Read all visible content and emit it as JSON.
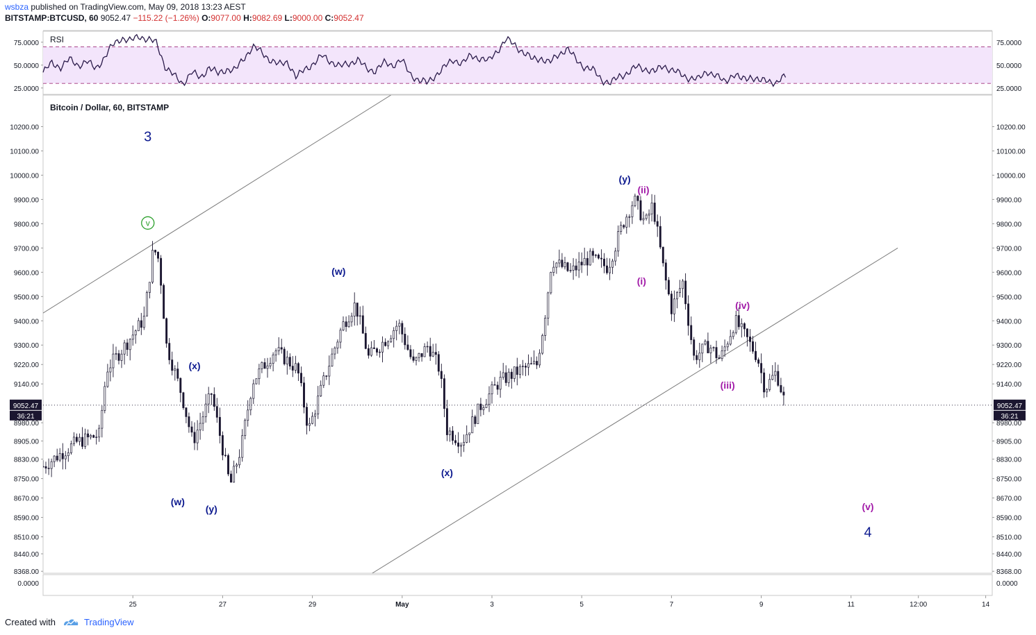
{
  "header": {
    "author": "wsbza",
    "published_text": "published on TradingView.com, May 09, 2018 13:23 AEST",
    "symbol": "BITSTAMP:BTCUSD, 60",
    "last_price": "9052.47",
    "change": "−115.22 (−1.26%)",
    "open_label": "O:",
    "open": "9077.00",
    "high_label": "H:",
    "high": "9082.69",
    "low_label": "L:",
    "low": "9000.00",
    "close_label": "C:",
    "close": "9052.47"
  },
  "footer": {
    "created_with": "Created with",
    "brand": "TradingView"
  },
  "colors": {
    "candle": "#1b1630",
    "rsi_line": "#2a1a4a",
    "rsi_band": "#f3e5fb",
    "blue_label": "#0d1a8f",
    "purple_label": "#a21ba8",
    "green_marker": "#2ca02c",
    "trendline": "#7a7a7a",
    "price_tag_bg": "#1b1630"
  },
  "chart_data": [
    {
      "type": "line",
      "name_label": "RSI",
      "ylim": [
        18,
        87
      ],
      "y_ticks": [
        "75.0000",
        "50.0000",
        "25.0000"
      ],
      "bands": [
        30,
        70
      ],
      "x_start": "2018-04-23 00:00",
      "x_end": "2018-05-09 13:00",
      "values": [
        42,
        52,
        48,
        56,
        50,
        54,
        46,
        58,
        72,
        80,
        76,
        82,
        78,
        74,
        48,
        38,
        30,
        42,
        36,
        48,
        40,
        46,
        44,
        58,
        70,
        64,
        56,
        50,
        54,
        36,
        46,
        52,
        60,
        54,
        48,
        52,
        56,
        46,
        44,
        52,
        50,
        56,
        40,
        34,
        30,
        40,
        48,
        56,
        52,
        60,
        58,
        54,
        66,
        78,
        72,
        64,
        56,
        58,
        52,
        62,
        68,
        56,
        48,
        44,
        34,
        30,
        38,
        42,
        48,
        46,
        42,
        50,
        44,
        40,
        36,
        34,
        44,
        38,
        32,
        40,
        34,
        38,
        32,
        34,
        30,
        38
      ]
    },
    {
      "type": "candlestick",
      "title": "Bitcoin / Dollar, 60, BITSTAMP",
      "ylim": [
        8360,
        10330
      ],
      "y_ticks": [
        "10200.00",
        "10100.00",
        "10000.00",
        "9900.00",
        "9800.00",
        "9700.00",
        "9600.00",
        "9500.00",
        "9400.00",
        "9300.00",
        "9220.00",
        "9140.00",
        "8980.00",
        "8905.00",
        "8830.00",
        "8750.00",
        "8670.00",
        "8590.00",
        "8510.00",
        "8440.00",
        "8368.00"
      ],
      "x_ticks": [
        "25",
        "27",
        "29",
        "May",
        "3",
        "5",
        "7",
        "9",
        "11",
        "12:00",
        "14"
      ],
      "last_price_tag": "9052.47",
      "countdown_tag": "36:21",
      "close_path": [
        {
          "t": "2018-04-23 00:00",
          "p": 8800
        },
        {
          "t": "2018-04-23 18:00",
          "p": 8900
        },
        {
          "t": "2018-04-24 06:00",
          "p": 8930
        },
        {
          "t": "2018-04-24 10:00",
          "p": 9200
        },
        {
          "t": "2018-04-24 20:00",
          "p": 9300
        },
        {
          "t": "2018-04-25 06:00",
          "p": 9410
        },
        {
          "t": "2018-04-25 11:00",
          "p": 9700
        },
        {
          "t": "2018-04-25 14:00",
          "p": 9650
        },
        {
          "t": "2018-04-25 18:00",
          "p": 9300
        },
        {
          "t": "2018-04-26 02:00",
          "p": 9100
        },
        {
          "t": "2018-04-26 08:00",
          "p": 8900
        },
        {
          "t": "2018-04-26 18:00",
          "p": 9100
        },
        {
          "t": "2018-04-26 22:00",
          "p": 8950
        },
        {
          "t": "2018-04-27 04:00",
          "p": 8720
        },
        {
          "t": "2018-04-27 10:00",
          "p": 8880
        },
        {
          "t": "2018-04-27 16:00",
          "p": 9150
        },
        {
          "t": "2018-04-28 04:00",
          "p": 9280
        },
        {
          "t": "2018-04-28 16:00",
          "p": 9200
        },
        {
          "t": "2018-04-28 22:00",
          "p": 8950
        },
        {
          "t": "2018-04-29 08:00",
          "p": 9200
        },
        {
          "t": "2018-04-29 16:00",
          "p": 9380
        },
        {
          "t": "2018-04-29 23:00",
          "p": 9470
        },
        {
          "t": "2018-04-30 06:00",
          "p": 9250
        },
        {
          "t": "2018-04-30 16:00",
          "p": 9330
        },
        {
          "t": "2018-04-30 22:00",
          "p": 9390
        },
        {
          "t": "2018-05-01 06:00",
          "p": 9220
        },
        {
          "t": "2018-05-01 14:00",
          "p": 9300
        },
        {
          "t": "2018-05-01 20:00",
          "p": 9200
        },
        {
          "t": "2018-05-02 00:00",
          "p": 8950
        },
        {
          "t": "2018-05-02 08:00",
          "p": 8900
        },
        {
          "t": "2018-05-02 18:00",
          "p": 9050
        },
        {
          "t": "2018-05-03 04:00",
          "p": 9150
        },
        {
          "t": "2018-05-03 16:00",
          "p": 9200
        },
        {
          "t": "2018-05-04 00:00",
          "p": 9220
        },
        {
          "t": "2018-05-04 04:00",
          "p": 9400
        },
        {
          "t": "2018-05-04 08:00",
          "p": 9650
        },
        {
          "t": "2018-05-04 18:00",
          "p": 9600
        },
        {
          "t": "2018-05-05 04:00",
          "p": 9660
        },
        {
          "t": "2018-05-05 14:00",
          "p": 9620
        },
        {
          "t": "2018-05-05 22:00",
          "p": 9800
        },
        {
          "t": "2018-05-06 04:00",
          "p": 9900
        },
        {
          "t": "2018-05-06 10:00",
          "p": 9800
        },
        {
          "t": "2018-05-06 14:00",
          "p": 9880
        },
        {
          "t": "2018-05-06 20:00",
          "p": 9600
        },
        {
          "t": "2018-05-07 00:00",
          "p": 9450
        },
        {
          "t": "2018-05-07 06:00",
          "p": 9560
        },
        {
          "t": "2018-05-07 12:00",
          "p": 9250
        },
        {
          "t": "2018-05-07 20:00",
          "p": 9300
        },
        {
          "t": "2018-05-08 02:00",
          "p": 9240
        },
        {
          "t": "2018-05-08 10:00",
          "p": 9400
        },
        {
          "t": "2018-05-08 16:00",
          "p": 9330
        },
        {
          "t": "2018-05-08 22:00",
          "p": 9250
        },
        {
          "t": "2018-05-09 02:00",
          "p": 9120
        },
        {
          "t": "2018-05-09 08:00",
          "p": 9190
        },
        {
          "t": "2018-05-09 13:00",
          "p": 9052
        }
      ],
      "trendlines": [
        {
          "from": {
            "t": "2018-04-23 00:00",
            "p": 9432
          },
          "to": {
            "t": "2018-04-30 18:00",
            "p": 10330
          }
        },
        {
          "from": {
            "t": "2018-04-30 08:00",
            "p": 8360
          },
          "to": {
            "t": "2018-05-12 01:00",
            "p": 9700
          }
        }
      ],
      "annotations": [
        {
          "text": "3",
          "t": "2018-04-25 08:00",
          "p": 10140,
          "color": "blue",
          "big": true
        },
        {
          "text": "v",
          "t": "2018-04-25 08:00",
          "p": 9803,
          "color": "green",
          "circled": true
        },
        {
          "text": "(x)",
          "t": "2018-04-26 09:00",
          "p": 9200,
          "color": "blue"
        },
        {
          "text": "(w)",
          "t": "2018-04-26 00:00",
          "p": 8640,
          "color": "blue"
        },
        {
          "text": "(y)",
          "t": "2018-04-26 18:00",
          "p": 8610,
          "color": "blue"
        },
        {
          "text": "(w)",
          "t": "2018-04-29 14:00",
          "p": 9590,
          "color": "blue"
        },
        {
          "text": "(x)",
          "t": "2018-05-02 00:00",
          "p": 8760,
          "color": "blue"
        },
        {
          "text": "(y)",
          "t": "2018-05-05 23:00",
          "p": 9970,
          "color": "blue"
        },
        {
          "text": "(ii)",
          "t": "2018-05-06 09:00",
          "p": 9925,
          "color": "purple"
        },
        {
          "text": "(i)",
          "t": "2018-05-06 08:00",
          "p": 9550,
          "color": "purple"
        },
        {
          "text": "(iii)",
          "t": "2018-05-08 06:00",
          "p": 9120,
          "color": "purple"
        },
        {
          "text": "(iv)",
          "t": "2018-05-08 14:00",
          "p": 9450,
          "color": "purple"
        },
        {
          "text": "(v)",
          "t": "2018-05-11 09:00",
          "p": 8620,
          "color": "purple"
        },
        {
          "text": "4",
          "t": "2018-05-11 09:00",
          "p": 8510,
          "color": "blue",
          "big": true
        }
      ]
    },
    {
      "type": "line",
      "name_label": "",
      "y_ticks": [
        "0.0000"
      ]
    }
  ]
}
